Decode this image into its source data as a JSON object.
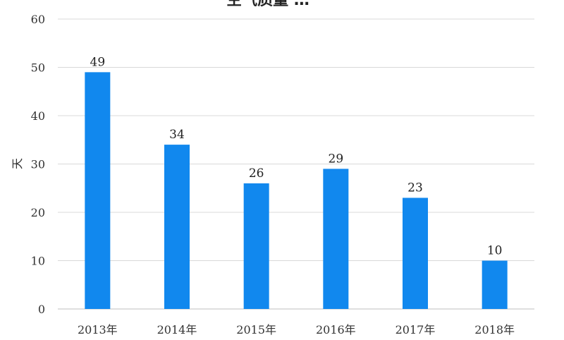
{
  "chart_data": {
    "type": "bar",
    "title": "空气质量 …",
    "ylabel": "天",
    "xlabel": "",
    "categories": [
      "2013年",
      "2014年",
      "2015年",
      "2016年",
      "2017年",
      "2018年"
    ],
    "values": [
      49,
      34,
      26,
      29,
      23,
      10
    ],
    "ylim": [
      0,
      60
    ],
    "yticks": [
      0,
      10,
      20,
      30,
      40,
      50,
      60
    ],
    "grid": true,
    "legend": "none",
    "bar_color": "#1188ee"
  }
}
